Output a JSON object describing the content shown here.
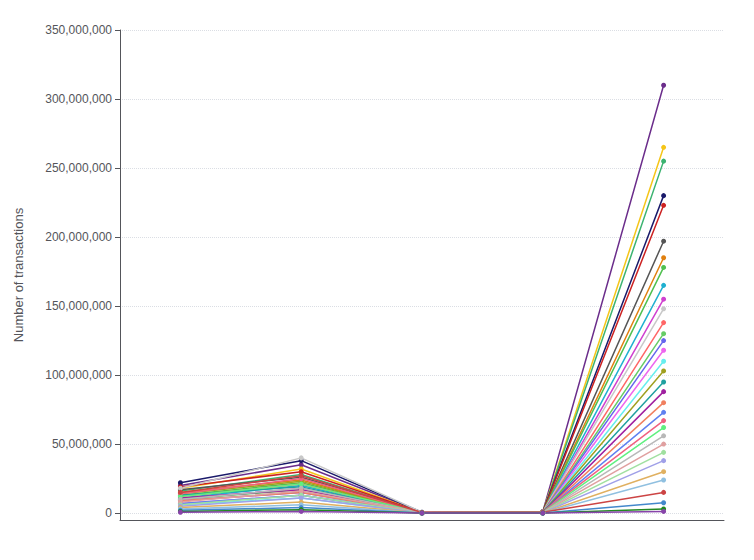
{
  "chart_data": {
    "type": "line",
    "ylabel": "Number of transactions",
    "categories": [
      null,
      null,
      null,
      null,
      null
    ],
    "ylim": [
      -5000000,
      350000000
    ],
    "yticks": [
      0,
      {
        "value": 50000000,
        "label": "50,000,000"
      },
      {
        "value": 100000000,
        "label": "100,000,000"
      },
      {
        "value": 150000000,
        "label": "150,000,000"
      },
      {
        "value": 200000000,
        "label": "200,000,000"
      },
      {
        "value": 250000000,
        "label": "250,000,000"
      },
      {
        "value": 300000000,
        "label": "300,000,000"
      },
      {
        "value": 350000000,
        "label": "350,000,000"
      }
    ],
    "grid": true,
    "tick_labels": "y",
    "marker": "circle",
    "series": [
      {
        "color": "#6b2d8b",
        "values": [
          20000000,
          35000000,
          500000,
          1000000,
          310000000
        ]
      },
      {
        "color": "#f5c518",
        "values": [
          18000000,
          32000000,
          400000,
          800000,
          265000000
        ]
      },
      {
        "color": "#3cb371",
        "values": [
          16000000,
          28000000,
          300000,
          600000,
          255000000
        ]
      },
      {
        "color": "#1a1a6a",
        "values": [
          22000000,
          38000000,
          600000,
          1000000,
          230000000
        ]
      },
      {
        "color": "#cc2222",
        "values": [
          19000000,
          30000000,
          500000,
          700000,
          223000000
        ]
      },
      {
        "color": "#555555",
        "values": [
          17000000,
          26000000,
          400000,
          500000,
          197000000
        ]
      },
      {
        "color": "#e08010",
        "values": [
          15000000,
          24000000,
          350000,
          500000,
          185000000
        ]
      },
      {
        "color": "#50c050",
        "values": [
          13000000,
          22000000,
          300000,
          400000,
          178000000
        ]
      },
      {
        "color": "#20b0d0",
        "values": [
          11000000,
          20000000,
          250000,
          350000,
          165000000
        ]
      },
      {
        "color": "#d040d0",
        "values": [
          10000000,
          18000000,
          200000,
          300000,
          155000000
        ]
      },
      {
        "color": "#c8c8c8",
        "values": [
          18000000,
          40000000,
          700000,
          900000,
          148000000
        ]
      },
      {
        "color": "#ff6666",
        "values": [
          12000000,
          21000000,
          300000,
          400000,
          138000000
        ]
      },
      {
        "color": "#66cc66",
        "values": [
          10000000,
          17000000,
          200000,
          300000,
          130000000
        ]
      },
      {
        "color": "#6666ee",
        "values": [
          9000000,
          15000000,
          180000,
          250000,
          125000000
        ]
      },
      {
        "color": "#ee66ee",
        "values": [
          7000000,
          13000000,
          150000,
          200000,
          118000000
        ]
      },
      {
        "color": "#66eeee",
        "values": [
          6000000,
          11000000,
          120000,
          180000,
          110000000
        ]
      },
      {
        "color": "#a0a020",
        "values": [
          14000000,
          23000000,
          300000,
          450000,
          103000000
        ]
      },
      {
        "color": "#20a0a0",
        "values": [
          13000000,
          19000000,
          280000,
          380000,
          95000000
        ]
      },
      {
        "color": "#a020a0",
        "values": [
          11000000,
          17000000,
          240000,
          320000,
          88000000
        ]
      },
      {
        "color": "#f08060",
        "values": [
          9000000,
          15000000,
          200000,
          270000,
          80000000
        ]
      },
      {
        "color": "#6080f0",
        "values": [
          7000000,
          13000000,
          160000,
          220000,
          73000000
        ]
      },
      {
        "color": "#f06080",
        "values": [
          14000000,
          25000000,
          350000,
          480000,
          67000000
        ]
      },
      {
        "color": "#60f080",
        "values": [
          12000000,
          21000000,
          300000,
          420000,
          62000000
        ]
      },
      {
        "color": "#b8b8b8",
        "values": [
          10000000,
          18000000,
          260000,
          360000,
          56000000
        ]
      },
      {
        "color": "#e0a0a0",
        "values": [
          8000000,
          16000000,
          220000,
          310000,
          50000000
        ]
      },
      {
        "color": "#a0e0a0",
        "values": [
          6000000,
          13000000,
          180000,
          250000,
          44000000
        ]
      },
      {
        "color": "#a0a0e8",
        "values": [
          5000000,
          11000000,
          140000,
          200000,
          38000000
        ]
      },
      {
        "color": "#e0b060",
        "values": [
          4000000,
          8000000,
          90000,
          130000,
          30000000
        ]
      },
      {
        "color": "#90c0e0",
        "values": [
          3000000,
          6000000,
          60000,
          90000,
          24000000
        ]
      },
      {
        "color": "#cc4444",
        "values": [
          15000000,
          27000000,
          450000,
          600000,
          15000000
        ]
      },
      {
        "color": "#4488cc",
        "values": [
          2000000,
          4000000,
          30000,
          40000,
          7500000
        ]
      },
      {
        "color": "#228822",
        "values": [
          1200000,
          2500000,
          15000,
          20000,
          3000000
        ]
      },
      {
        "color": "#8844aa",
        "values": [
          600000,
          1200000,
          6000,
          8000,
          1200000
        ]
      }
    ]
  }
}
